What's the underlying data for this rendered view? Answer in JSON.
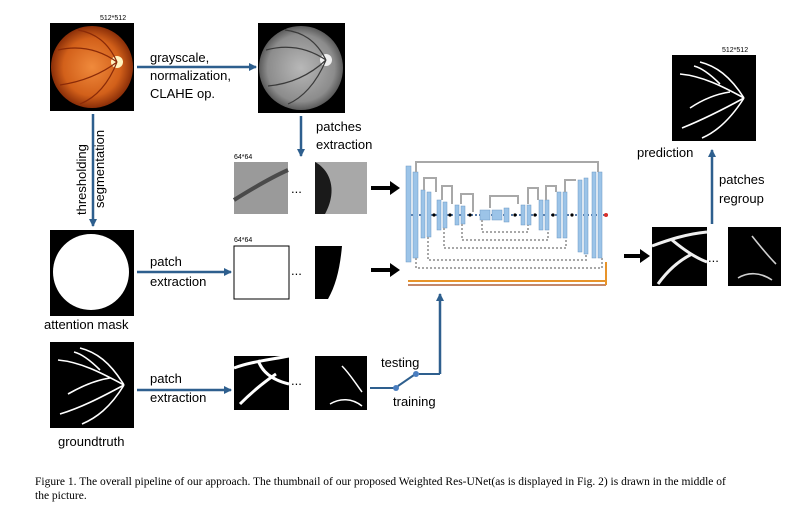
{
  "labels": {
    "size_top": "512*512",
    "grayscale_op": [
      "grayscale,",
      "normalization,",
      "CLAHE op."
    ],
    "patches_extraction": [
      "patches",
      "extraction"
    ],
    "thresholding": [
      "thresholding",
      "segmentation"
    ],
    "patch_size_1": "64*64",
    "patch_size_2": "64*64",
    "patch_extraction_mask": [
      "patch",
      "extraction"
    ],
    "attention_mask": "attention mask",
    "patch_extraction_gt": [
      "patch",
      "extraction"
    ],
    "groundtruth": "groundtruth",
    "testing": "testing",
    "training": "training",
    "size_pred": "512*512",
    "prediction": "prediction",
    "patches_regroup": [
      "patches",
      "regroup"
    ],
    "ellipsis": "..."
  },
  "caption": {
    "line1": "Figure 1.   The overall pipeline of our approach. The thumbnail of our proposed Weighted Res-UNet(as is displayed in Fig. 2) is drawn in the middle of",
    "line2": "the picture."
  },
  "colors": {
    "arrow_blue": "#2e5f8e",
    "unet_blue": "#9cc4e8",
    "unet_gray": "#a8a8a8",
    "fundus_orange": "#d2691e",
    "orange_line": "#e8942a"
  }
}
